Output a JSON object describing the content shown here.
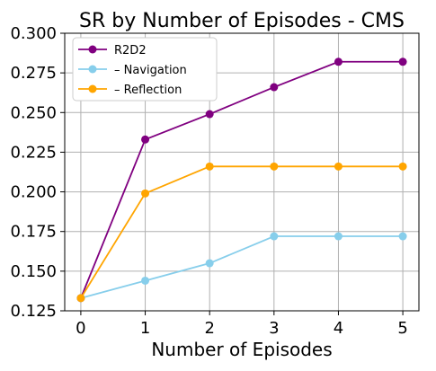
{
  "chart_data": {
    "type": "line",
    "title": "SR by Number of Episodes - CMS",
    "xlabel": "Number of Episodes",
    "ylabel": "",
    "x": [
      0,
      1,
      2,
      3,
      4,
      5
    ],
    "xlim": [
      -0.25,
      5.25
    ],
    "ylim": [
      0.125,
      0.3
    ],
    "xticks": [
      "0",
      "1",
      "2",
      "3",
      "4",
      "5"
    ],
    "yticks": [
      "0.125",
      "0.150",
      "0.175",
      "0.200",
      "0.225",
      "0.250",
      "0.275",
      "0.300"
    ],
    "grid": true,
    "legend_position": "top-left",
    "series": [
      {
        "name": "R2D2",
        "color": "#800080",
        "marker": "circle",
        "values": [
          0.133,
          0.233,
          0.249,
          0.266,
          0.282,
          0.282
        ]
      },
      {
        "name": "– Navigation",
        "color": "#87ceeb",
        "marker": "circle",
        "values": [
          0.133,
          0.144,
          0.155,
          0.172,
          0.172,
          0.172
        ]
      },
      {
        "name": "– Reflection",
        "color": "#ffa500",
        "marker": "circle",
        "values": [
          0.133,
          0.199,
          0.216,
          0.216,
          0.216,
          0.216
        ]
      }
    ]
  }
}
